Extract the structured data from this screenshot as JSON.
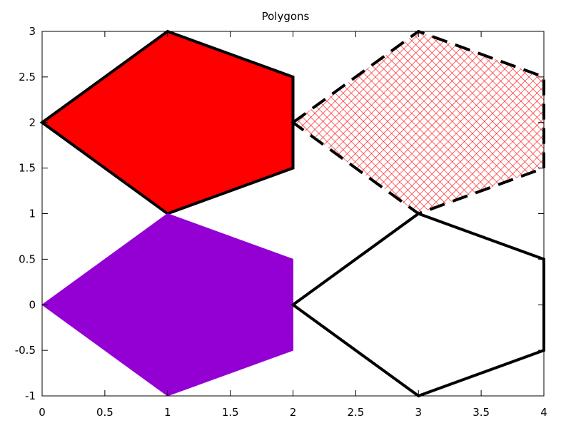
{
  "chart_data": {
    "type": "polygon",
    "title": "Polygons",
    "xlabel": "",
    "ylabel": "",
    "xlim": [
      0,
      4
    ],
    "ylim": [
      -1,
      3
    ],
    "grid": false,
    "legend": "none",
    "x_ticks": [
      "0",
      "0.5",
      "1",
      "1.5",
      "2",
      "2.5",
      "3",
      "3.5",
      "4"
    ],
    "y_ticks": [
      "-1",
      "-0.5",
      "0",
      "0.5",
      "1",
      "1.5",
      "2",
      "2.5",
      "3"
    ],
    "x_tick_values": [
      0,
      0.5,
      1,
      1.5,
      2,
      2.5,
      3,
      3.5,
      4
    ],
    "y_tick_values": [
      -1,
      -0.5,
      0,
      0.5,
      1,
      1.5,
      2,
      2.5,
      3
    ],
    "polygons": [
      {
        "id": "red-solid",
        "vertices": [
          [
            0,
            2
          ],
          [
            1,
            3
          ],
          [
            2,
            2.5
          ],
          [
            2,
            1.5
          ],
          [
            1,
            1
          ]
        ],
        "fill": "solid",
        "fill_color": "#ff0000",
        "stroke_color": "#000000",
        "stroke": "solid"
      },
      {
        "id": "red-crosshatch",
        "vertices": [
          [
            2,
            2
          ],
          [
            3,
            3
          ],
          [
            4,
            2.5
          ],
          [
            4,
            1.5
          ],
          [
            3,
            1
          ]
        ],
        "fill": "crosshatch",
        "fill_color": "#ff0000",
        "stroke_color": "#000000",
        "stroke": "dashed"
      },
      {
        "id": "purple-solid",
        "vertices": [
          [
            0,
            0
          ],
          [
            1,
            1
          ],
          [
            2,
            0.5
          ],
          [
            2,
            -0.5
          ],
          [
            1,
            -1
          ]
        ],
        "fill": "solid",
        "fill_color": "#9400d3",
        "stroke_color": "#9400d3",
        "stroke": "none"
      },
      {
        "id": "outline-only",
        "vertices": [
          [
            2,
            0
          ],
          [
            3,
            1
          ],
          [
            4,
            0.5
          ],
          [
            4,
            -0.5
          ],
          [
            3,
            -1
          ]
        ],
        "fill": "none",
        "fill_color": "none",
        "stroke_color": "#000000",
        "stroke": "solid"
      }
    ]
  }
}
